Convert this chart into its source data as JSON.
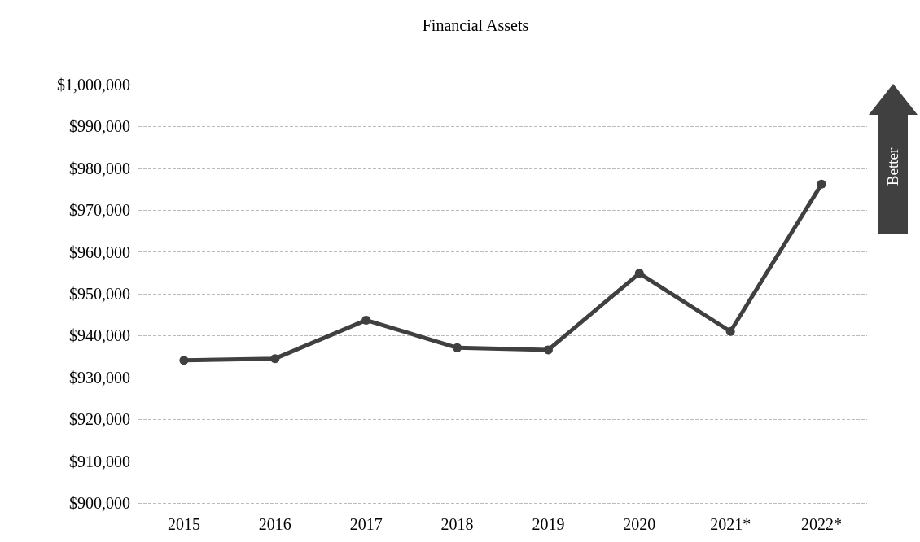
{
  "chart_data": {
    "type": "line",
    "title": "Financial Assets",
    "categories": [
      "2015",
      "2016",
      "2017",
      "2018",
      "2019",
      "2020",
      "2021*",
      "2022*"
    ],
    "series": [
      {
        "color": "#404040",
        "values": [
          934100,
          934500,
          943700,
          937100,
          936600,
          954900,
          941000,
          976200
        ]
      }
    ],
    "ylim": [
      900000,
      1000000
    ],
    "yticks": [
      {
        "value": 900000,
        "label": "$900,000"
      },
      {
        "value": 910000,
        "label": "$910,000"
      },
      {
        "value": 920000,
        "label": "$920,000"
      },
      {
        "value": 930000,
        "label": "$930,000"
      },
      {
        "value": 940000,
        "label": "$940,000"
      },
      {
        "value": 950000,
        "label": "$950,000"
      },
      {
        "value": 960000,
        "label": "$960,000"
      },
      {
        "value": 970000,
        "label": "$970,000"
      },
      {
        "value": 980000,
        "label": "$980,000"
      },
      {
        "value": 990000,
        "label": "$990,000"
      },
      {
        "value": 1000000,
        "label": "$1,000,000"
      }
    ],
    "grid": "y",
    "marker": "circle",
    "line_style": "solid",
    "annotations": [
      "Better"
    ]
  }
}
